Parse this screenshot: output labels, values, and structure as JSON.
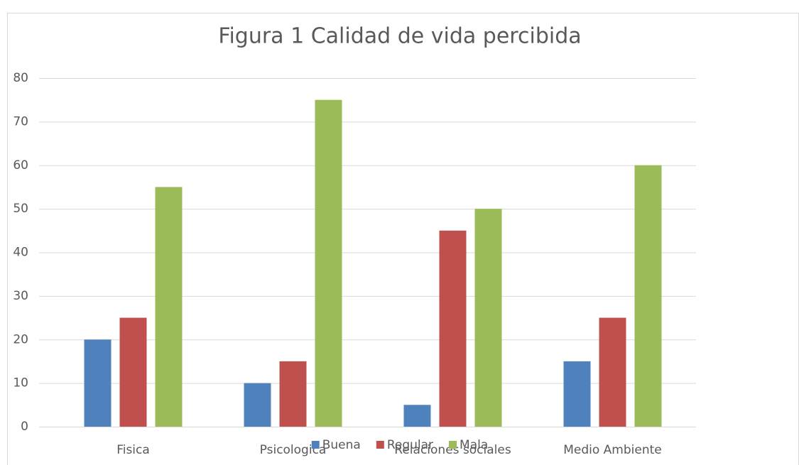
{
  "chart_data": {
    "type": "bar",
    "title": "Figura 1 Calidad de vida percibida",
    "categories": [
      "Fisica",
      "Psicologica",
      "Relaciones sociales",
      "Medio Ambiente"
    ],
    "series": [
      {
        "name": "Buena",
        "color": "#4f81bd",
        "values": [
          20,
          10,
          5,
          15
        ]
      },
      {
        "name": "Regular",
        "color": "#c0504d",
        "values": [
          25,
          15,
          45,
          25
        ]
      },
      {
        "name": "Mala",
        "color": "#9bbb59",
        "values": [
          55,
          75,
          50,
          60
        ]
      }
    ],
    "ylim": [
      0,
      80
    ],
    "yticks": [
      0,
      10,
      20,
      30,
      40,
      50,
      60,
      70,
      80
    ],
    "grid": true,
    "legend": "bottom"
  }
}
